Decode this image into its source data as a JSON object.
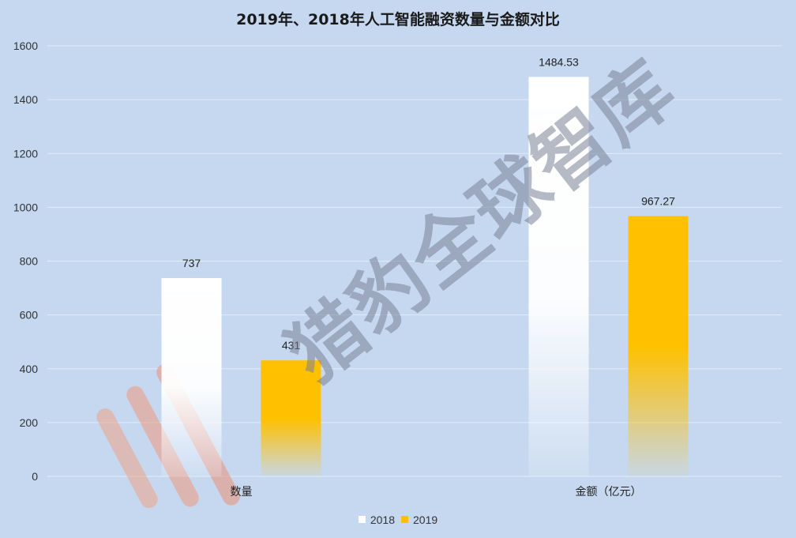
{
  "chart_data": {
    "type": "bar",
    "title": "2019年、2018年人工智能融资数量与金额对比",
    "categories": [
      "数量",
      "金额（亿元）"
    ],
    "series": [
      {
        "name": "2018",
        "values": [
          737,
          1484.53
        ],
        "color": "#ffffff"
      },
      {
        "name": "2019",
        "values": [
          431,
          967.27
        ],
        "color": "#ffc000"
      }
    ],
    "data_labels": [
      [
        "737",
        "1484.53"
      ],
      [
        "431",
        "967.27"
      ]
    ],
    "ylim": [
      0,
      1600
    ],
    "yticks": [
      0,
      200,
      400,
      600,
      800,
      1000,
      1200,
      1400,
      1600
    ],
    "grid": true,
    "legend": "bottom"
  },
  "watermark_text": "猎豹全球智库"
}
